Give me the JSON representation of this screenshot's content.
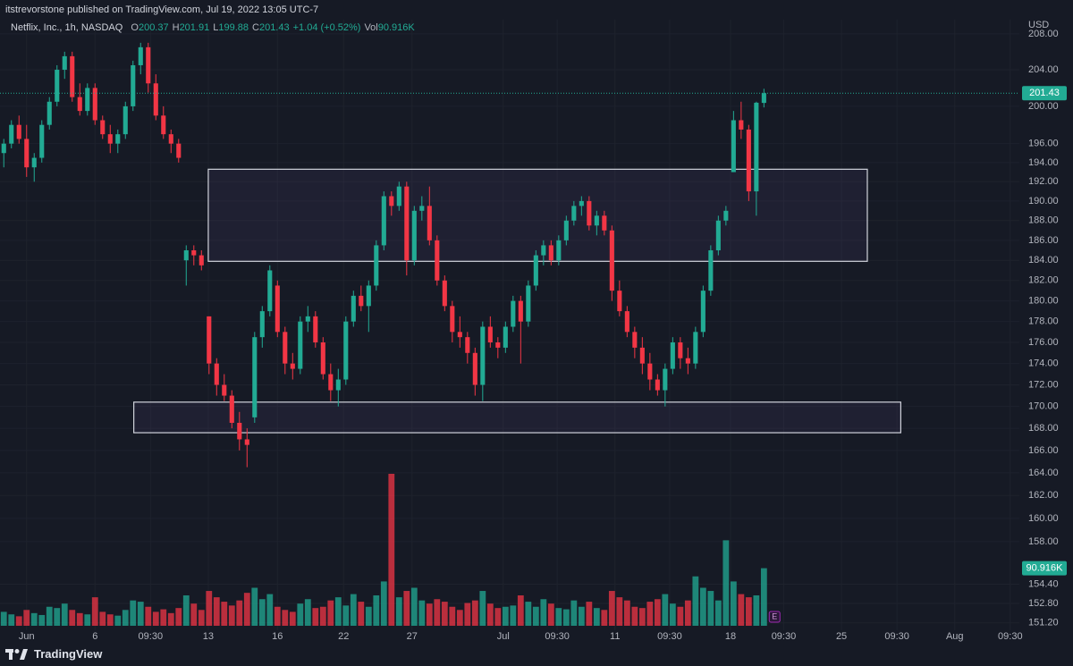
{
  "published": "itstrevorstone published on TradingView.com, Jul 19, 2022 13:05 UTC-7",
  "chart_data": {
    "type": "candlestick",
    "symbol": "Netflix, Inc., 1h, NASDAQ",
    "ohlc_labels": [
      "O",
      "H",
      "L",
      "C"
    ],
    "change_label": "+1.04 (+0.52%)",
    "volume_label": "Vol",
    "last_volume_label": "90.916K",
    "currency": "USD",
    "earnings_marker": "E",
    "up_color": "#22ab94",
    "down_color": "#f23645",
    "zone_color": "#d1d4dc",
    "grid": true,
    "log_scale": true,
    "xlim": [
      -0.5,
      133.6
    ],
    "ylim": [
      150.6,
      209.0
    ],
    "xticks": [
      {
        "value": 3.0,
        "label": "Jun"
      },
      {
        "value": 12.0,
        "label": "6"
      },
      {
        "value": 19.3,
        "label": "09:30"
      },
      {
        "value": 26.9,
        "label": "13"
      },
      {
        "value": 36.0,
        "label": "16"
      },
      {
        "value": 44.7,
        "label": "22"
      },
      {
        "value": 53.7,
        "label": "27"
      },
      {
        "value": 65.7,
        "label": "Jul"
      },
      {
        "value": 72.8,
        "label": "09:30"
      },
      {
        "value": 80.4,
        "label": "11"
      },
      {
        "value": 87.6,
        "label": "09:30"
      },
      {
        "value": 95.6,
        "label": "18"
      },
      {
        "value": 102.6,
        "label": "09:30"
      },
      {
        "value": 110.2,
        "label": "25"
      },
      {
        "value": 117.5,
        "label": "09:30"
      },
      {
        "value": 125.1,
        "label": "Aug"
      },
      {
        "value": 132.4,
        "label": "09:30"
      }
    ],
    "yticks": [
      {
        "value": 208,
        "label": "208.00"
      },
      {
        "value": 204,
        "label": "204.00"
      },
      {
        "value": 200,
        "label": "200.00"
      },
      {
        "value": 196,
        "label": "196.00"
      },
      {
        "value": 194,
        "label": "194.00"
      },
      {
        "value": 192,
        "label": "192.00"
      },
      {
        "value": 190,
        "label": "190.00"
      },
      {
        "value": 188,
        "label": "188.00"
      },
      {
        "value": 186,
        "label": "186.00"
      },
      {
        "value": 184,
        "label": "184.00"
      },
      {
        "value": 182,
        "label": "182.00"
      },
      {
        "value": 180,
        "label": "180.00"
      },
      {
        "value": 178,
        "label": "178.00"
      },
      {
        "value": 176,
        "label": "176.00"
      },
      {
        "value": 174,
        "label": "174.00"
      },
      {
        "value": 172,
        "label": "172.00"
      },
      {
        "value": 170,
        "label": "170.00"
      },
      {
        "value": 168,
        "label": "168.00"
      },
      {
        "value": 166,
        "label": "166.00"
      },
      {
        "value": 164,
        "label": "164.00"
      },
      {
        "value": 162,
        "label": "162.00"
      },
      {
        "value": 160,
        "label": "160.00"
      },
      {
        "value": 158,
        "label": "158.00"
      },
      {
        "value": 154.4,
        "label": "154.40"
      },
      {
        "value": 152.8,
        "label": "152.80"
      },
      {
        "value": 151.2,
        "label": "151.20"
      }
    ],
    "zones": [
      {
        "x": [
          26.9,
          113.6
        ],
        "y": [
          183.9,
          193.3
        ]
      },
      {
        "x": [
          17.1,
          118.0
        ],
        "y": [
          167.6,
          170.4
        ]
      }
    ],
    "ohlc": [
      [
        195.0,
        196.5,
        193.5,
        196.0
      ],
      [
        196.0,
        198.5,
        195.5,
        198.0
      ],
      [
        198.0,
        199.0,
        196.0,
        196.5
      ],
      [
        196.5,
        198.0,
        192.5,
        193.5
      ],
      [
        193.5,
        195.0,
        192.0,
        194.5
      ],
      [
        194.5,
        198.5,
        194.0,
        198.0
      ],
      [
        198.0,
        201.0,
        197.5,
        200.5
      ],
      [
        200.5,
        204.5,
        200.0,
        204.0
      ],
      [
        204.0,
        206.0,
        203.0,
        205.5
      ],
      [
        205.5,
        206.0,
        200.5,
        201.0
      ],
      [
        201.0,
        202.5,
        199.0,
        199.5
      ],
      [
        199.5,
        202.5,
        199.0,
        202.0
      ],
      [
        202.0,
        202.5,
        198.0,
        198.5
      ],
      [
        198.5,
        199.0,
        196.5,
        197.0
      ],
      [
        197.0,
        198.0,
        195.0,
        196.0
      ],
      [
        196.0,
        197.5,
        195.0,
        197.0
      ],
      [
        197.0,
        200.5,
        196.5,
        200.0
      ],
      [
        200.0,
        205.0,
        199.5,
        204.5
      ],
      [
        204.5,
        207.0,
        203.5,
        206.5
      ],
      [
        206.5,
        207.0,
        201.5,
        202.5
      ],
      [
        202.5,
        203.5,
        198.5,
        199.0
      ],
      [
        199.0,
        200.0,
        196.5,
        197.0
      ],
      [
        197.0,
        197.5,
        195.0,
        196.0
      ],
      [
        196.0,
        196.5,
        194.0,
        194.5
      ],
      [
        184.0,
        185.5,
        181.5,
        185.0
      ],
      [
        185.0,
        185.5,
        183.5,
        184.5
      ],
      [
        184.5,
        185.0,
        183.0,
        183.5
      ],
      [
        178.5,
        178.5,
        173.0,
        174.0
      ],
      [
        174.0,
        174.5,
        171.0,
        172.0
      ],
      [
        172.0,
        173.0,
        170.5,
        171.0
      ],
      [
        171.0,
        171.5,
        168.0,
        168.5
      ],
      [
        168.5,
        169.5,
        166.0,
        167.0
      ],
      [
        167.0,
        168.0,
        164.5,
        166.5
      ],
      [
        169.0,
        177.0,
        168.5,
        176.5
      ],
      [
        176.5,
        179.5,
        175.5,
        179.0
      ],
      [
        179.0,
        183.5,
        178.5,
        183.0
      ],
      [
        181.5,
        182.0,
        176.5,
        177.0
      ],
      [
        177.0,
        177.5,
        173.0,
        174.0
      ],
      [
        174.0,
        175.0,
        172.5,
        173.5
      ],
      [
        173.5,
        178.5,
        173.0,
        178.0
      ],
      [
        178.0,
        179.5,
        177.0,
        178.5
      ],
      [
        178.5,
        179.0,
        175.5,
        176.0
      ],
      [
        176.0,
        176.5,
        172.5,
        173.0
      ],
      [
        173.0,
        174.0,
        170.5,
        171.5
      ],
      [
        171.5,
        173.5,
        170.0,
        172.5
      ],
      [
        172.5,
        178.5,
        172.0,
        178.0
      ],
      [
        178.0,
        181.0,
        177.5,
        180.5
      ],
      [
        180.5,
        181.5,
        179.0,
        179.5
      ],
      [
        179.5,
        182.0,
        177.0,
        181.5
      ],
      [
        181.5,
        186.0,
        181.0,
        185.5
      ],
      [
        185.5,
        191.0,
        185.0,
        190.5
      ],
      [
        190.5,
        191.0,
        188.5,
        189.5
      ],
      [
        189.5,
        192.0,
        189.0,
        191.5
      ],
      [
        191.5,
        192.0,
        182.5,
        184.0
      ],
      [
        184.0,
        189.5,
        183.5,
        189.0
      ],
      [
        189.0,
        190.5,
        188.0,
        189.5
      ],
      [
        189.5,
        191.5,
        185.5,
        186.0
      ],
      [
        186.0,
        186.5,
        181.5,
        182.0
      ],
      [
        182.0,
        182.5,
        179.0,
        179.5
      ],
      [
        179.5,
        180.0,
        176.0,
        177.0
      ],
      [
        177.0,
        178.5,
        175.5,
        176.5
      ],
      [
        176.5,
        177.0,
        174.0,
        175.0
      ],
      [
        175.0,
        175.5,
        171.0,
        172.0
      ],
      [
        172.0,
        178.0,
        170.5,
        177.5
      ],
      [
        177.5,
        178.5,
        175.5,
        176.0
      ],
      [
        176.0,
        176.5,
        174.5,
        175.5
      ],
      [
        175.5,
        178.0,
        175.0,
        177.5
      ],
      [
        177.5,
        180.5,
        177.0,
        180.0
      ],
      [
        180.0,
        180.5,
        174.0,
        178.0
      ],
      [
        178.0,
        182.0,
        177.5,
        181.5
      ],
      [
        181.5,
        185.0,
        181.0,
        184.5
      ],
      [
        184.5,
        186.0,
        183.5,
        185.5
      ],
      [
        185.5,
        186.0,
        183.5,
        184.0
      ],
      [
        184.0,
        186.5,
        183.5,
        186.0
      ],
      [
        186.0,
        188.5,
        185.5,
        188.0
      ],
      [
        188.0,
        190.0,
        187.5,
        189.5
      ],
      [
        189.5,
        190.5,
        188.5,
        190.0
      ],
      [
        190.0,
        190.5,
        187.0,
        187.5
      ],
      [
        187.5,
        189.0,
        186.5,
        188.5
      ],
      [
        188.5,
        189.0,
        186.5,
        187.0
      ],
      [
        187.0,
        187.5,
        180.0,
        181.0
      ],
      [
        181.0,
        182.0,
        178.5,
        179.0
      ],
      [
        179.0,
        179.5,
        176.5,
        177.0
      ],
      [
        177.0,
        177.5,
        174.5,
        175.5
      ],
      [
        175.5,
        176.5,
        173.0,
        174.0
      ],
      [
        174.0,
        175.0,
        171.5,
        172.5
      ],
      [
        172.5,
        173.0,
        171.0,
        171.5
      ],
      [
        171.5,
        174.0,
        170.0,
        173.5
      ],
      [
        173.5,
        176.5,
        173.0,
        176.0
      ],
      [
        176.0,
        176.5,
        173.5,
        174.5
      ],
      [
        174.5,
        175.5,
        173.0,
        174.0
      ],
      [
        174.0,
        177.5,
        173.5,
        177.0
      ],
      [
        177.0,
        181.5,
        176.5,
        181.0
      ],
      [
        181.0,
        185.5,
        180.5,
        185.0
      ],
      [
        185.0,
        188.5,
        184.5,
        188.0
      ],
      [
        188.0,
        189.5,
        187.5,
        189.0
      ],
      [
        193.0,
        199.5,
        193.0,
        198.5
      ],
      [
        198.5,
        200.5,
        196.5,
        197.5
      ],
      [
        197.5,
        198.0,
        190.0,
        191.0
      ],
      [
        191.0,
        200.5,
        188.5,
        200.39
      ],
      [
        200.37,
        201.91,
        199.88,
        201.43
      ]
    ],
    "volume": [
      22000,
      18000,
      15000,
      25000,
      20000,
      17000,
      30000,
      28000,
      35000,
      25000,
      20000,
      18000,
      45000,
      22000,
      18000,
      16000,
      25000,
      40000,
      38000,
      30000,
      22000,
      26000,
      20000,
      28000,
      48000,
      35000,
      25000,
      55000,
      45000,
      38000,
      32000,
      40000,
      52000,
      60000,
      42000,
      50000,
      30000,
      25000,
      22000,
      35000,
      42000,
      28000,
      30000,
      40000,
      45000,
      32000,
      50000,
      38000,
      30000,
      48000,
      70000,
      240000,
      45000,
      55000,
      60000,
      40000,
      35000,
      42000,
      38000,
      30000,
      25000,
      36000,
      40000,
      55000,
      35000,
      28000,
      30000,
      32000,
      48000,
      38000,
      30000,
      42000,
      35000,
      28000,
      26000,
      40000,
      30000,
      38000,
      28000,
      25000,
      55000,
      45000,
      40000,
      30000,
      28000,
      38000,
      42000,
      50000,
      35000,
      30000,
      40000,
      78000,
      60000,
      55000,
      40000,
      135000,
      70000,
      50000,
      45000,
      48000,
      90916
    ],
    "footer_brand": "TradingView"
  }
}
